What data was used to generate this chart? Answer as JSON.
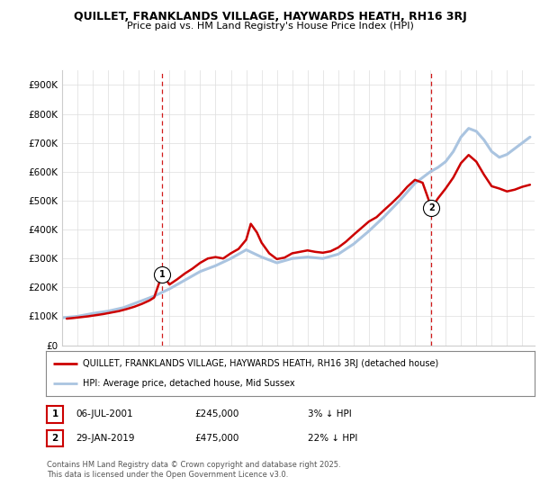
{
  "title": "QUILLET, FRANKLANDS VILLAGE, HAYWARDS HEATH, RH16 3RJ",
  "subtitle": "Price paid vs. HM Land Registry's House Price Index (HPI)",
  "ylabel_ticks": [
    "£0",
    "£100K",
    "£200K",
    "£300K",
    "£400K",
    "£500K",
    "£600K",
    "£700K",
    "£800K",
    "£900K"
  ],
  "ytick_values": [
    0,
    100000,
    200000,
    300000,
    400000,
    500000,
    600000,
    700000,
    800000,
    900000
  ],
  "ylim": [
    0,
    950000
  ],
  "xlim_start": 1995.0,
  "xlim_end": 2025.8,
  "hpi_color": "#aac4e0",
  "price_color": "#cc0000",
  "dashed_color": "#cc0000",
  "marker1_x": 2001.52,
  "marker1_y": 245000,
  "marker2_x": 2019.08,
  "marker2_y": 475000,
  "legend_label1": "QUILLET, FRANKLANDS VILLAGE, HAYWARDS HEATH, RH16 3RJ (detached house)",
  "legend_label2": "HPI: Average price, detached house, Mid Sussex",
  "note1_num": "1",
  "note1_date": "06-JUL-2001",
  "note1_price": "£245,000",
  "note1_pct": "3% ↓ HPI",
  "note2_num": "2",
  "note2_date": "29-JAN-2019",
  "note2_price": "£475,000",
  "note2_pct": "22% ↓ HPI",
  "footer": "Contains HM Land Registry data © Crown copyright and database right 2025.\nThis data is licensed under the Open Government Licence v3.0.",
  "background_color": "#ffffff",
  "grid_color": "#dddddd",
  "hpi_x": [
    1995,
    1996,
    1997,
    1998,
    1999,
    2000,
    2001,
    2002,
    2003,
    2004,
    2005,
    2006,
    2007,
    2008,
    2009,
    2010,
    2011,
    2012,
    2013,
    2014,
    2015,
    2016,
    2017,
    2018,
    2019,
    2019.5,
    2020,
    2020.5,
    2021,
    2021.5,
    2022,
    2022.5,
    2023,
    2023.5,
    2024,
    2024.5,
    2025,
    2025.5
  ],
  "hpi_values": [
    95000,
    100000,
    110000,
    118000,
    130000,
    150000,
    170000,
    195000,
    225000,
    255000,
    275000,
    300000,
    330000,
    305000,
    285000,
    300000,
    305000,
    300000,
    315000,
    350000,
    395000,
    445000,
    500000,
    560000,
    600000,
    615000,
    635000,
    670000,
    720000,
    750000,
    740000,
    710000,
    670000,
    650000,
    660000,
    680000,
    700000,
    720000
  ],
  "price_x": [
    1995.3,
    1995.7,
    1996.2,
    1996.7,
    1997.2,
    1997.7,
    1998.2,
    1998.7,
    1999.2,
    1999.7,
    2000.2,
    2000.7,
    2001.0,
    2001.52,
    2002.0,
    2002.5,
    2003.0,
    2003.5,
    2004.0,
    2004.5,
    2005.0,
    2005.5,
    2006.0,
    2006.5,
    2007.0,
    2007.3,
    2007.7,
    2008.0,
    2008.5,
    2009.0,
    2009.5,
    2010.0,
    2010.5,
    2011.0,
    2011.5,
    2012.0,
    2012.5,
    2013.0,
    2013.5,
    2014.0,
    2014.5,
    2015.0,
    2015.5,
    2016.0,
    2016.5,
    2017.0,
    2017.5,
    2018.0,
    2018.5,
    2019.08,
    2019.5,
    2020.0,
    2020.5,
    2021.0,
    2021.5,
    2022.0,
    2022.5,
    2023.0,
    2023.5,
    2024.0,
    2024.5,
    2025.0,
    2025.5
  ],
  "price_y": [
    92000,
    94000,
    97000,
    100000,
    104000,
    108000,
    113000,
    118000,
    125000,
    133000,
    143000,
    155000,
    165000,
    245000,
    210000,
    228000,
    248000,
    265000,
    285000,
    300000,
    305000,
    300000,
    318000,
    333000,
    365000,
    420000,
    390000,
    355000,
    318000,
    298000,
    303000,
    318000,
    323000,
    328000,
    323000,
    320000,
    325000,
    338000,
    358000,
    382000,
    405000,
    428000,
    443000,
    468000,
    492000,
    518000,
    548000,
    572000,
    562000,
    475000,
    508000,
    542000,
    580000,
    630000,
    658000,
    635000,
    590000,
    550000,
    542000,
    532000,
    538000,
    548000,
    555000
  ]
}
